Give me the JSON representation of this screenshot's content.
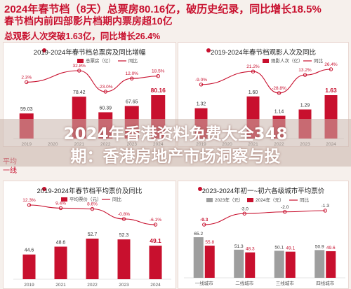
{
  "header": {
    "line1": "2024年春节档（8天）总票房80.16亿，破历史纪录，同比增长18.5%",
    "line2": "春节档内前四部影片档期内票房超10亿",
    "line3": "总观影人次突破1.63亿，同比增长26.4%"
  },
  "overlay": {
    "line1": "2024年香港资料免费大全348",
    "line2": "期：香港房地产市场洞察与投"
  },
  "side_text": {
    "avg": "平均",
    "tier1": "一线"
  },
  "colors": {
    "red": "#c8102e",
    "gray": "#9e9e9e",
    "pink": "#f2c9c9"
  },
  "chart_data": [
    {
      "type": "bar",
      "title": "2019-2024年春节档总票房及同比增幅",
      "legend": [
        "总票房（亿）",
        "同比"
      ],
      "categories": [
        "2019",
        "2020",
        "2021",
        "2022",
        "2023",
        "2024"
      ],
      "series": [
        {
          "name": "总票房（亿）",
          "values": [
            59.03,
            0,
            78.42,
            60.39,
            67.65,
            80.16
          ]
        },
        {
          "name": "同比",
          "values": [
            2.3,
            null,
            32.8,
            -23.0,
            12.0,
            18.5
          ]
        }
      ],
      "bar_labels": [
        "59.03",
        "",
        "78.42",
        "60.39",
        "67.65",
        "80.16"
      ],
      "line_labels": [
        "2.3%",
        "",
        "32.8%",
        "-23.0%",
        "12.0%",
        "18.5%"
      ]
    },
    {
      "type": "bar",
      "title": "2019-2024年春节档观影人次及同比",
      "legend": [
        "观影人次（亿）",
        "同比"
      ],
      "categories": [
        "2019",
        "2020",
        "2021",
        "2022",
        "2023",
        "2024"
      ],
      "series": [
        {
          "name": "观影人次（亿）",
          "values": [
            1.32,
            0,
            1.6,
            1.14,
            1.29,
            1.63
          ]
        },
        {
          "name": "同比",
          "values": [
            -9.0,
            null,
            21.2,
            -28.8,
            13.2,
            26.4
          ]
        }
      ],
      "bar_labels": [
        "1.32",
        "",
        "1.60",
        "1.14",
        "1.29",
        "1.63"
      ],
      "line_labels": [
        "-9.0%",
        "",
        "21.2%",
        "-28.8%",
        "13.2%",
        "26.4%"
      ]
    },
    {
      "type": "bar",
      "title": "2019-2024年春节档平均票价及同比",
      "legend": [
        "平均票价（元）",
        "同比"
      ],
      "categories": [
        "2019",
        "2021",
        "2022",
        "2023",
        "2024"
      ],
      "series": [
        {
          "name": "平均票价（元）",
          "values": [
            44.6,
            48.6,
            52.7,
            52.3,
            49.1
          ]
        },
        {
          "name": "同比",
          "values": [
            12.3,
            9.4,
            8.6,
            -0.8,
            -6.1
          ]
        }
      ],
      "bar_labels": [
        "44.6",
        "48.6",
        "52.7",
        "52.3",
        "49.1"
      ],
      "line_labels": [
        "12.3%",
        "9.4%",
        "8.6%",
        "-0.8%",
        "-6.1%"
      ]
    },
    {
      "type": "bar",
      "title": "2023-2024年初一~初六各级城市平均票价",
      "legend": [
        "2023年（元）",
        "2024年（元）",
        "同比"
      ],
      "categories": [
        "一线城市",
        "二线城市",
        "三线城市",
        "四线城市"
      ],
      "series": [
        {
          "name": "2023年（元）",
          "values": [
            65.2,
            51.3,
            50.1,
            50.9
          ]
        },
        {
          "name": "2024年（元）",
          "values": [
            55.8,
            48.3,
            49.1,
            49.6
          ]
        },
        {
          "name": "同比",
          "values": [
            -9.3,
            -3.0,
            -2.0,
            -1.3
          ]
        }
      ],
      "bar_labels_2023": [
        "65.2",
        "51.3",
        "50.1",
        "50.9"
      ],
      "bar_labels_2024": [
        "55.8",
        "48.3",
        "49.1",
        "49.6"
      ],
      "line_labels": [
        "-9.3",
        "-3.0",
        "-2.0",
        "-1.3"
      ]
    }
  ]
}
